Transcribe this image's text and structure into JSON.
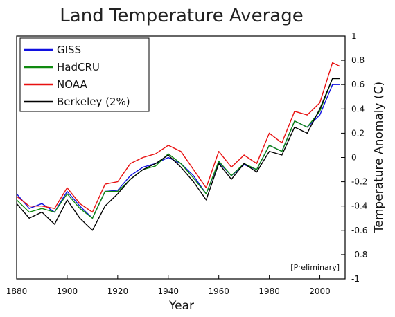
{
  "chart_data": {
    "type": "line",
    "title": "Land Temperature Average",
    "xlabel": "Year",
    "ylabel": "Temperature Anomaly (C)",
    "xlim": [
      1880,
      2010
    ],
    "ylim": [
      -1,
      1
    ],
    "xticks": [
      1880,
      1900,
      1920,
      1940,
      1960,
      1980,
      2000
    ],
    "yticks": [
      -1,
      -0.8,
      -0.6,
      -0.4,
      -0.2,
      0,
      0.2,
      0.4,
      0.6,
      0.8,
      1
    ],
    "x_tick_labels": [
      "1880",
      "1900",
      "1920",
      "1940",
      "1960",
      "1980",
      "2000"
    ],
    "y_tick_labels": [
      "-1",
      "-0.8",
      "-0.6",
      "-0.4",
      "-0.2",
      "0",
      "0.2",
      "0.4",
      "0.6",
      "0.8",
      "1"
    ],
    "annotation": "[Preliminary]",
    "legend_position": "top-left",
    "grid": false,
    "colors": {
      "GISS": "#1010e0",
      "HadCRU": "#108a10",
      "NOAA": "#e81010",
      "Berkeley (2%)": "#000000"
    },
    "series": [
      {
        "name": "GISS",
        "x": [
          1880,
          1885,
          1890,
          1895,
          1900,
          1905,
          1910,
          1915,
          1920,
          1925,
          1930,
          1935,
          1940,
          1945,
          1950,
          1955,
          1960,
          1965,
          1970,
          1975,
          1980,
          1985,
          1990,
          1995,
          2000,
          2005,
          2008
        ],
        "y": [
          -0.3,
          -0.42,
          -0.38,
          -0.45,
          -0.28,
          -0.4,
          -0.5,
          -0.28,
          -0.27,
          -0.15,
          -0.08,
          -0.05,
          0.0,
          -0.05,
          -0.15,
          -0.3,
          -0.04,
          -0.15,
          -0.06,
          -0.1,
          0.1,
          0.05,
          0.3,
          0.25,
          0.35,
          0.6,
          0.6
        ]
      },
      {
        "name": "HadCRU",
        "x": [
          1880,
          1885,
          1890,
          1895,
          1900,
          1905,
          1910,
          1915,
          1920,
          1925,
          1930,
          1935,
          1940,
          1945,
          1950,
          1955,
          1960,
          1965,
          1970,
          1975,
          1980,
          1985,
          1990,
          1995,
          2000,
          2005,
          2008
        ],
        "y": [
          -0.35,
          -0.45,
          -0.42,
          -0.45,
          -0.3,
          -0.42,
          -0.5,
          -0.28,
          -0.28,
          -0.18,
          -0.1,
          -0.07,
          0.03,
          -0.05,
          -0.17,
          -0.3,
          -0.03,
          -0.15,
          -0.05,
          -0.1,
          0.1,
          0.05,
          0.3,
          0.25,
          0.38,
          0.65,
          0.65
        ]
      },
      {
        "name": "NOAA",
        "x": [
          1880,
          1885,
          1890,
          1895,
          1900,
          1905,
          1910,
          1915,
          1920,
          1925,
          1930,
          1935,
          1940,
          1945,
          1950,
          1955,
          1960,
          1965,
          1970,
          1975,
          1980,
          1985,
          1990,
          1995,
          2000,
          2005,
          2008
        ],
        "y": [
          -0.32,
          -0.4,
          -0.4,
          -0.42,
          -0.25,
          -0.38,
          -0.45,
          -0.22,
          -0.2,
          -0.05,
          0.0,
          0.03,
          0.1,
          0.05,
          -0.1,
          -0.25,
          0.05,
          -0.08,
          0.02,
          -0.05,
          0.2,
          0.12,
          0.38,
          0.35,
          0.45,
          0.78,
          0.75
        ]
      },
      {
        "name": "Berkeley (2%)",
        "x": [
          1880,
          1885,
          1890,
          1895,
          1900,
          1905,
          1910,
          1915,
          1920,
          1925,
          1930,
          1935,
          1940,
          1945,
          1950,
          1955,
          1960,
          1965,
          1970,
          1975,
          1980,
          1985,
          1990,
          1995,
          2000,
          2005,
          2008
        ],
        "y": [
          -0.38,
          -0.5,
          -0.45,
          -0.55,
          -0.35,
          -0.5,
          -0.6,
          -0.4,
          -0.3,
          -0.18,
          -0.1,
          -0.05,
          0.02,
          -0.08,
          -0.2,
          -0.35,
          -0.05,
          -0.18,
          -0.05,
          -0.12,
          0.05,
          0.02,
          0.25,
          0.2,
          0.4,
          0.65,
          0.65
        ]
      }
    ]
  }
}
